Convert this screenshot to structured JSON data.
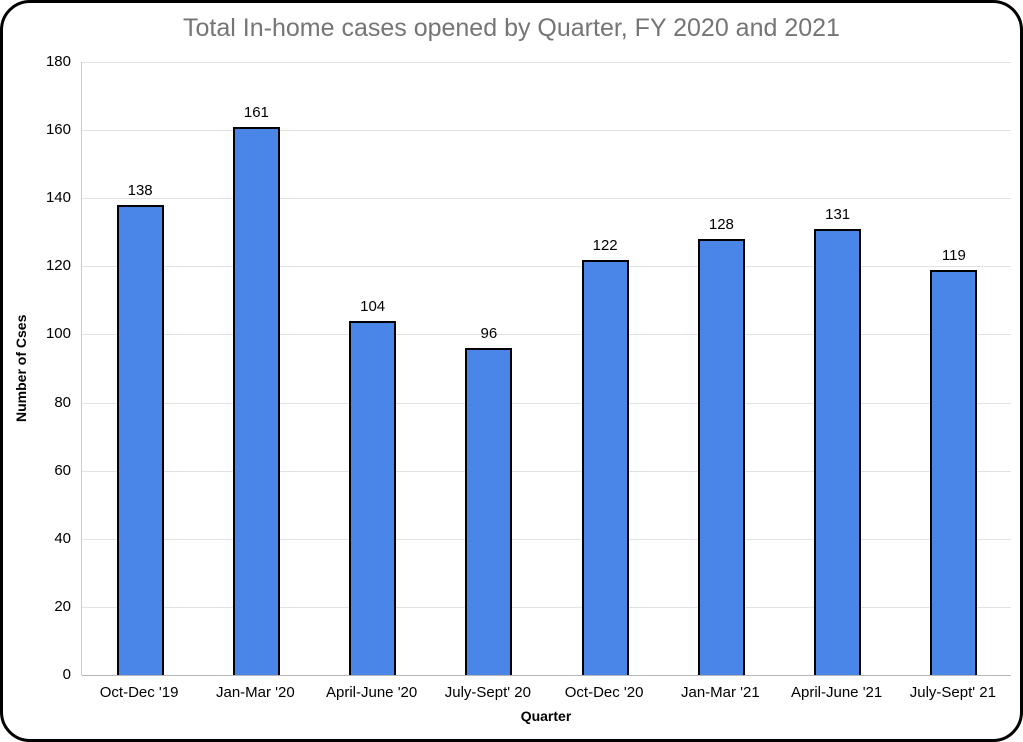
{
  "chart_data": {
    "type": "bar",
    "title": "Total In-home cases opened by Quarter, FY 2020 and 2021",
    "categories": [
      "Oct-Dec '19",
      "Jan-Mar '20",
      "April-June '20",
      "July-Sept' 20",
      "Oct-Dec '20",
      "Jan-Mar '21",
      "April-June '21",
      "July-Sept' 21"
    ],
    "values": [
      138,
      161,
      104,
      96,
      122,
      128,
      131,
      119
    ],
    "xlabel": "Quarter",
    "ylabel": "Number of Cses",
    "ylim": [
      0,
      180
    ],
    "yticks": [
      0,
      20,
      40,
      60,
      80,
      100,
      120,
      140,
      160,
      180
    ],
    "grid": true,
    "legend_position": "none",
    "data_labels_visible": true,
    "colors": {
      "bar_fill": "#4a86e8",
      "bar_border": "#000000",
      "gridline": "#e2e2e2",
      "baseline": "#b7b7b7",
      "axis_line": "#cccccc",
      "title_text": "#757575",
      "tick_text": "#000000",
      "frame_border": "#000000",
      "background": "#ffffff"
    }
  }
}
